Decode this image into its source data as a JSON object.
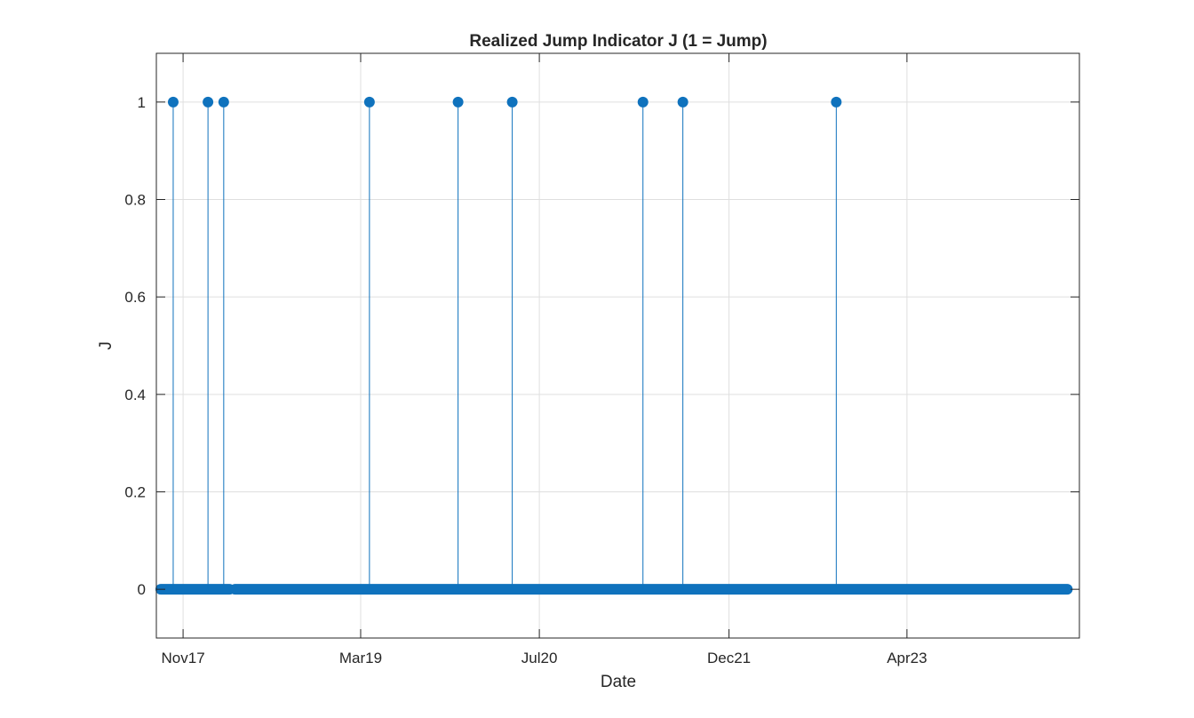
{
  "chart_data": {
    "type": "stem",
    "title": "Realized Jump Indicator J (1 = Jump)",
    "xlabel": "Date",
    "ylabel": "J",
    "ylim": [
      -0.1,
      1.1
    ],
    "xlim": [
      "2017-08-20",
      "2024-07-15"
    ],
    "yticks": [
      0,
      0.2,
      0.4,
      0.6,
      0.8,
      1
    ],
    "ytick_labels": [
      "0",
      "0.2",
      "0.4",
      "0.6",
      "0.8",
      "1"
    ],
    "xticks": [
      "2017-11-01",
      "2019-03-01",
      "2020-07-01",
      "2021-12-01",
      "2023-04-01"
    ],
    "xtick_labels": [
      "Nov17",
      "Mar19",
      "Jul20",
      "Dec21",
      "Apr23"
    ],
    "grid": true,
    "color": "#0f72bd",
    "zero_segments": [
      {
        "start": "2017-09-01",
        "end": "2018-03-08"
      },
      {
        "start": "2018-03-23",
        "end": "2024-06-12"
      }
    ],
    "jumps": [
      {
        "date": "2017-10-05",
        "value": 1
      },
      {
        "date": "2018-01-08",
        "value": 1
      },
      {
        "date": "2018-02-20",
        "value": 1
      },
      {
        "date": "2019-03-25",
        "value": 1
      },
      {
        "date": "2019-11-22",
        "value": 1
      },
      {
        "date": "2020-04-18",
        "value": 1
      },
      {
        "date": "2021-04-10",
        "value": 1
      },
      {
        "date": "2021-07-28",
        "value": 1
      },
      {
        "date": "2022-09-20",
        "value": 1
      }
    ]
  }
}
